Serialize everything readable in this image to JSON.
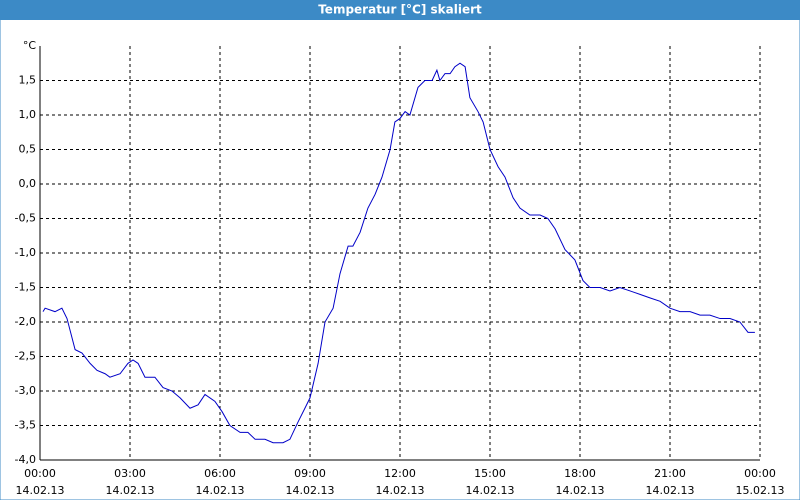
{
  "chart_data": {
    "type": "line",
    "title": "Temperatur [°C] skaliert",
    "y_unit": "°C",
    "xlim": [
      0,
      24
    ],
    "ylim": [
      -4,
      2
    ],
    "grid": true,
    "color": "#0000c8",
    "xticks": [
      {
        "value": 0,
        "label": "00:00",
        "date": "14.02.13"
      },
      {
        "value": 3,
        "label": "03:00",
        "date": "14.02.13"
      },
      {
        "value": 6,
        "label": "06:00",
        "date": "14.02.13"
      },
      {
        "value": 9,
        "label": "09:00",
        "date": "14.02.13"
      },
      {
        "value": 12,
        "label": "12:00",
        "date": "14.02.13"
      },
      {
        "value": 15,
        "label": "15:00",
        "date": "14.02.13"
      },
      {
        "value": 18,
        "label": "18:00",
        "date": "14.02.13"
      },
      {
        "value": 21,
        "label": "21:00",
        "date": "14.02.13"
      },
      {
        "value": 24,
        "label": "00:00",
        "date": "15.02.13"
      }
    ],
    "yticks": [
      {
        "value": -4,
        "label": "-4,0"
      },
      {
        "value": -3.5,
        "label": "-3,5"
      },
      {
        "value": -3,
        "label": "-3,0"
      },
      {
        "value": -2.5,
        "label": "-2,5"
      },
      {
        "value": -2,
        "label": "-2,0"
      },
      {
        "value": -1.5,
        "label": "-1,5"
      },
      {
        "value": -1,
        "label": "-1,0"
      },
      {
        "value": -0.5,
        "label": "-0,5"
      },
      {
        "value": 0,
        "label": "0,0"
      },
      {
        "value": 0.5,
        "label": "0,5"
      },
      {
        "value": 1,
        "label": "1,0"
      },
      {
        "value": 1.5,
        "label": "1,5"
      }
    ],
    "x": [
      0.1,
      0.17,
      0.5,
      0.73,
      0.9,
      1.17,
      1.4,
      1.67,
      1.9,
      2.17,
      2.33,
      2.67,
      2.93,
      3.1,
      3.27,
      3.5,
      3.83,
      4.1,
      4.4,
      4.67,
      5.0,
      5.27,
      5.5,
      5.83,
      6.07,
      6.33,
      6.67,
      6.93,
      7.17,
      7.5,
      7.77,
      8.1,
      8.33,
      8.6,
      8.83,
      9.0,
      9.27,
      9.5,
      9.77,
      10.0,
      10.27,
      10.43,
      10.67,
      10.93,
      11.17,
      11.4,
      11.67,
      11.83,
      12.0,
      12.17,
      12.33,
      12.6,
      12.83,
      13.07,
      13.23,
      13.33,
      13.5,
      13.67,
      13.83,
      14.0,
      14.17,
      14.33,
      14.6,
      14.77,
      15.0,
      15.27,
      15.5,
      15.77,
      16.0,
      16.33,
      16.67,
      16.93,
      17.17,
      17.5,
      17.83,
      18.1,
      18.33,
      18.67,
      19.0,
      19.33,
      19.67,
      20.0,
      20.33,
      20.67,
      21.0,
      21.33,
      21.67,
      22.0,
      22.33,
      22.67,
      23.0,
      23.33,
      23.6,
      23.83
    ],
    "values": [
      -1.85,
      -1.8,
      -1.85,
      -1.8,
      -1.95,
      -2.4,
      -2.45,
      -2.6,
      -2.7,
      -2.75,
      -2.8,
      -2.75,
      -2.6,
      -2.55,
      -2.6,
      -2.8,
      -2.8,
      -2.95,
      -3.0,
      -3.1,
      -3.25,
      -3.2,
      -3.05,
      -3.15,
      -3.3,
      -3.5,
      -3.6,
      -3.6,
      -3.7,
      -3.7,
      -3.75,
      -3.75,
      -3.7,
      -3.45,
      -3.25,
      -3.1,
      -2.6,
      -2.0,
      -1.8,
      -1.3,
      -0.9,
      -0.9,
      -0.7,
      -0.35,
      -0.15,
      0.1,
      0.5,
      0.9,
      0.95,
      1.05,
      1.0,
      1.4,
      1.5,
      1.5,
      1.65,
      1.5,
      1.6,
      1.6,
      1.7,
      1.75,
      1.7,
      1.25,
      1.05,
      0.9,
      0.5,
      0.25,
      0.1,
      -0.2,
      -0.35,
      -0.45,
      -0.45,
      -0.5,
      -0.65,
      -0.95,
      -1.1,
      -1.4,
      -1.5,
      -1.5,
      -1.55,
      -1.5,
      -1.55,
      -1.6,
      -1.65,
      -1.7,
      -1.8,
      -1.85,
      -1.85,
      -1.9,
      -1.9,
      -1.95,
      -1.95,
      -2.0,
      -2.15,
      -2.15
    ]
  }
}
